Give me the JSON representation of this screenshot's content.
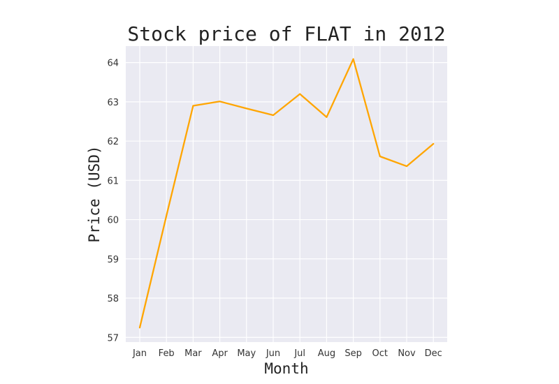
{
  "chart_data": {
    "type": "line",
    "title": "Stock price of FLAT in 2012",
    "xlabel": "Month",
    "ylabel": "Price (USD)",
    "categories": [
      "Jan",
      "Feb",
      "Mar",
      "Apr",
      "May",
      "Jun",
      "Jul",
      "Aug",
      "Sep",
      "Oct",
      "Nov",
      "Dec"
    ],
    "series": [
      {
        "values": [
          57.25,
          60.1,
          62.9,
          63.01,
          62.83,
          62.66,
          63.2,
          62.61,
          64.09,
          61.61,
          61.36,
          61.93
        ],
        "color": "#ffa500"
      }
    ],
    "yticks": [
      57,
      58,
      59,
      60,
      61,
      62,
      63,
      64
    ],
    "ylim": [
      56.88,
      64.42
    ],
    "grid": true,
    "plot_background": "#eaeaf2",
    "grid_color": "#ffffff"
  }
}
